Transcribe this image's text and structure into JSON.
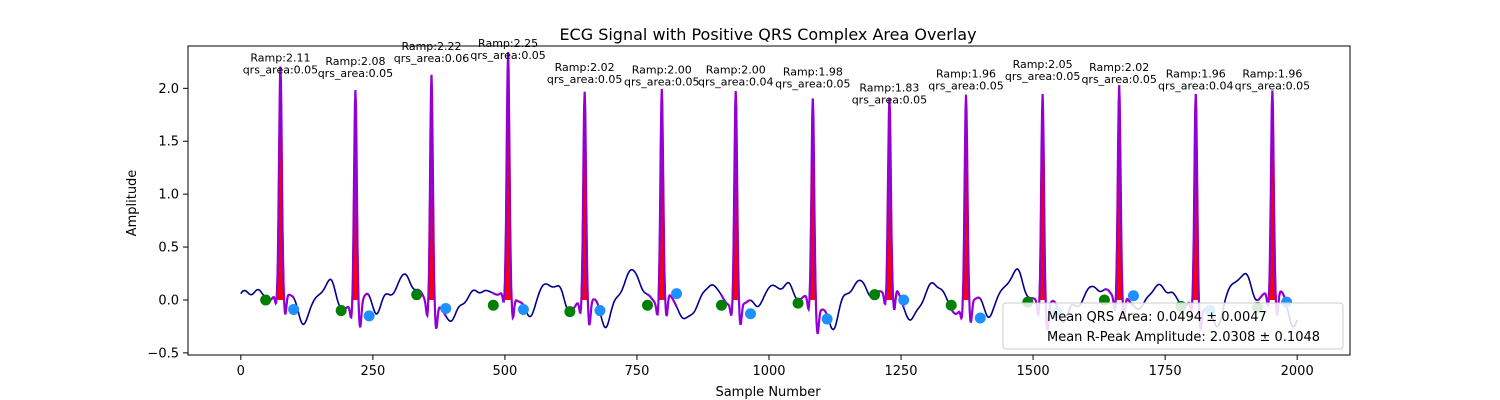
{
  "chart_data": {
    "type": "line",
    "title": "ECG Signal with Positive QRS Complex Area Overlay",
    "xlabel": "Sample Number",
    "ylabel": "Amplitude",
    "xlim": [
      -100,
      2100
    ],
    "ylim": [
      -0.52,
      2.4
    ],
    "xticks": [
      0,
      250,
      500,
      750,
      1000,
      1250,
      1500,
      1750,
      2000
    ],
    "yticks": [
      -0.5,
      0.0,
      0.5,
      1.0,
      1.5,
      2.0
    ],
    "grid": false,
    "colors": {
      "signal": "#00008b",
      "qrs": "#9400d3",
      "area": "#ff0000",
      "onset": "#008000",
      "offset": "#1e90ff"
    },
    "beats": [
      {
        "r_x": 75,
        "ramp": "2.11",
        "qrs_area": "0.05",
        "on_x": 47,
        "on_y": 0.0,
        "off_x": 100,
        "off_y": -0.09
      },
      {
        "r_x": 217,
        "ramp": "2.08",
        "qrs_area": "0.05",
        "on_x": 190,
        "on_y": -0.1,
        "off_x": 243,
        "off_y": -0.15
      },
      {
        "r_x": 361,
        "ramp": "2.22",
        "qrs_area": "0.06",
        "on_x": 333,
        "on_y": 0.05,
        "off_x": 388,
        "off_y": -0.08
      },
      {
        "r_x": 506,
        "ramp": "2.25",
        "qrs_area": "0.05",
        "on_x": 478,
        "on_y": -0.05,
        "off_x": 535,
        "off_y": -0.09
      },
      {
        "r_x": 651,
        "ramp": "2.02",
        "qrs_area": "0.05",
        "on_x": 623,
        "on_y": -0.11,
        "off_x": 680,
        "off_y": -0.1
      },
      {
        "r_x": 797,
        "ramp": "2.00",
        "qrs_area": "0.05",
        "on_x": 770,
        "on_y": -0.05,
        "off_x": 825,
        "off_y": 0.06
      },
      {
        "r_x": 937,
        "ramp": "2.00",
        "qrs_area": "0.04",
        "on_x": 910,
        "on_y": -0.05,
        "off_x": 965,
        "off_y": -0.13
      },
      {
        "r_x": 1083,
        "ramp": "1.98",
        "qrs_area": "0.05",
        "on_x": 1055,
        "on_y": -0.03,
        "off_x": 1110,
        "off_y": -0.18
      },
      {
        "r_x": 1228,
        "ramp": "1.83",
        "qrs_area": "0.05",
        "on_x": 1200,
        "on_y": 0.05,
        "off_x": 1255,
        "off_y": 0.0
      },
      {
        "r_x": 1373,
        "ramp": "1.96",
        "qrs_area": "0.05",
        "on_x": 1345,
        "on_y": -0.05,
        "off_x": 1400,
        "off_y": -0.17
      },
      {
        "r_x": 1518,
        "ramp": "2.05",
        "qrs_area": "0.05",
        "on_x": 1490,
        "on_y": -0.02,
        "off_x": 1545,
        "off_y": -0.12
      },
      {
        "r_x": 1663,
        "ramp": "2.02",
        "qrs_area": "0.05",
        "on_x": 1635,
        "on_y": 0.0,
        "off_x": 1690,
        "off_y": 0.04
      },
      {
        "r_x": 1808,
        "ramp": "1.96",
        "qrs_area": "0.04",
        "on_x": 1780,
        "on_y": -0.06,
        "off_x": 1835,
        "off_y": -0.1
      },
      {
        "r_x": 1953,
        "ramp": "1.96",
        "qrs_area": "0.05",
        "on_x": 1925,
        "on_y": -0.07,
        "off_x": 1980,
        "off_y": -0.02
      }
    ],
    "r_peak_label_prefix": "Ramp:",
    "qrs_area_label_prefix": "qrs_area:",
    "legend": {
      "placement": "lower-right",
      "entries": [
        "Mean QRS Area: 0.0494 ± 0.0047",
        "Mean R-Peak Amplitude: 2.0308 ± 0.1048"
      ]
    }
  }
}
